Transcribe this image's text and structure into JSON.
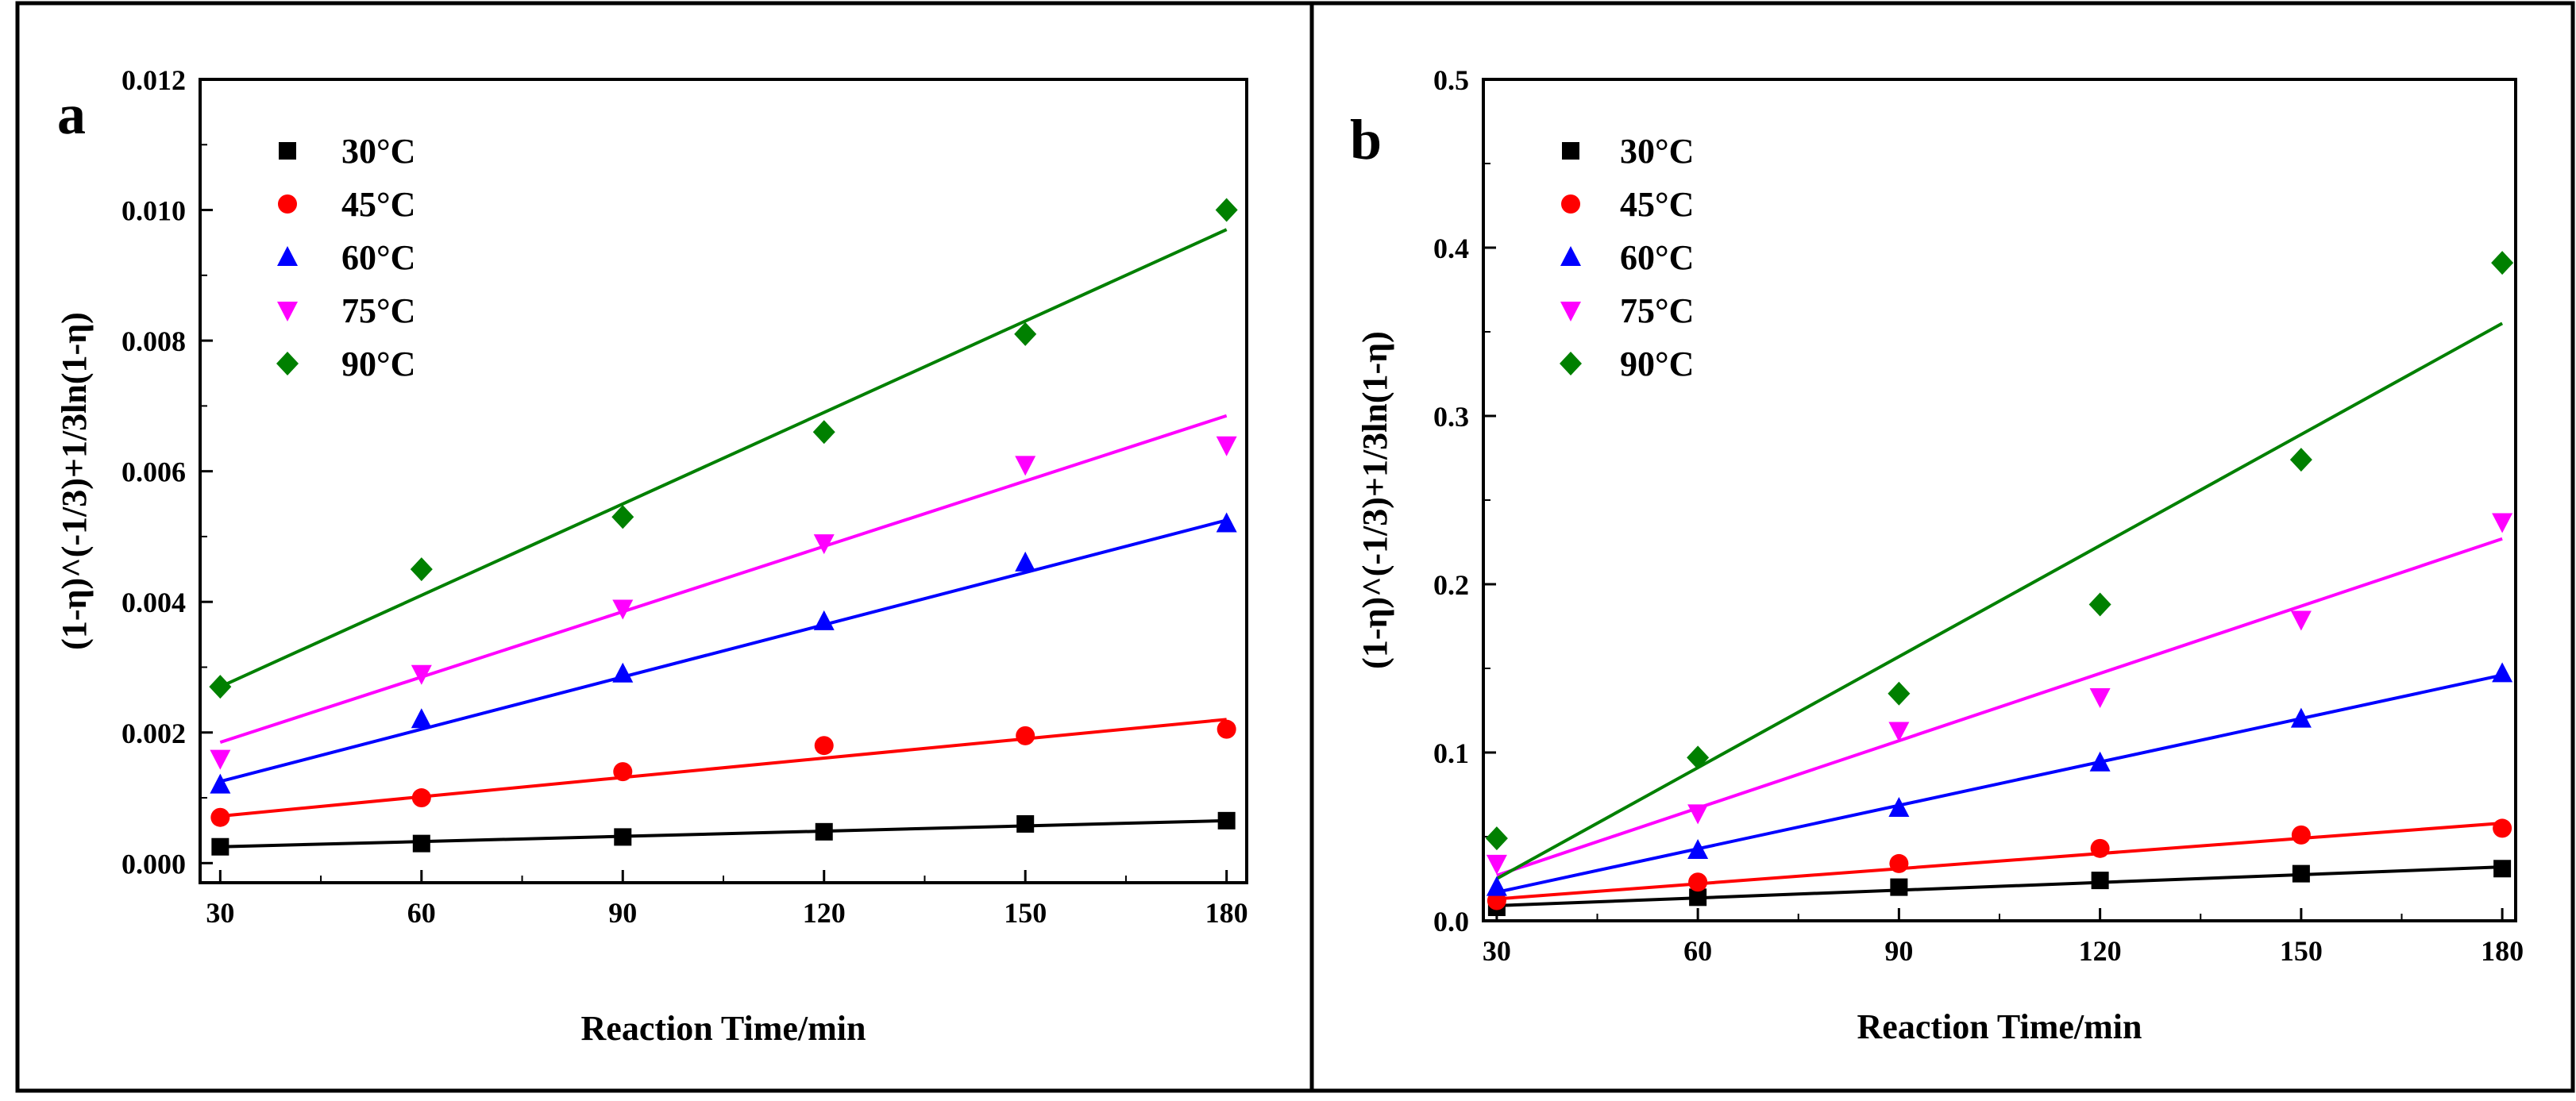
{
  "chart_data": [
    {
      "type": "scatter",
      "panel_label": "a",
      "xlabel": "Reaction Time/min",
      "ylabel": "(1-η)^(-1/3)+1/3ln(1-η)",
      "xlim": [
        27,
        183
      ],
      "ylim": [
        -0.0003,
        0.012
      ],
      "x_ticks": [
        30,
        60,
        90,
        120,
        150,
        180
      ],
      "y_ticks": [
        0.0,
        0.002,
        0.004,
        0.006,
        0.008,
        0.01,
        0.012
      ],
      "y_tick_labels": [
        "0.000",
        "0.002",
        "0.004",
        "0.006",
        "0.008",
        "0.010",
        "0.012"
      ],
      "x": [
        30,
        60,
        90,
        120,
        150,
        180
      ],
      "legend_position": "top-left",
      "fit_lines": true,
      "series": [
        {
          "name": "30°C",
          "marker": "square",
          "color": "#000000",
          "values": [
            0.00025,
            0.0003,
            0.0004,
            0.00048,
            0.0006,
            0.00065
          ],
          "fit": [
            0.00025,
            0.00065
          ]
        },
        {
          "name": "45°C",
          "marker": "circle",
          "color": "#ff0000",
          "values": [
            0.0007,
            0.001,
            0.0014,
            0.0018,
            0.00195,
            0.00205
          ],
          "fit": [
            0.00072,
            0.0022
          ]
        },
        {
          "name": "60°C",
          "marker": "triangle-up",
          "color": "#0000ff",
          "values": [
            0.0012,
            0.0022,
            0.0029,
            0.0037,
            0.0046,
            0.0052
          ],
          "fit": [
            0.00125,
            0.00525
          ]
        },
        {
          "name": "75°C",
          "marker": "triangle-down",
          "color": "#ff00ff",
          "values": [
            0.0016,
            0.0029,
            0.0039,
            0.0049,
            0.0061,
            0.0064
          ],
          "fit": [
            0.00185,
            0.00685
          ]
        },
        {
          "name": "90°C",
          "marker": "diamond",
          "color": "#008000",
          "values": [
            0.0027,
            0.0045,
            0.0053,
            0.0066,
            0.0081,
            0.01
          ],
          "fit": [
            0.0027,
            0.0097
          ]
        }
      ]
    },
    {
      "type": "scatter",
      "panel_label": "b",
      "xlabel": "Reaction Time/min",
      "ylabel": "(1-η)^(-1/3)+1/3ln(1-η)",
      "xlim": [
        28,
        182
      ],
      "ylim": [
        0,
        0.5
      ],
      "x_ticks": [
        30,
        60,
        90,
        120,
        150,
        180
      ],
      "y_ticks": [
        0.0,
        0.1,
        0.2,
        0.3,
        0.4,
        0.5
      ],
      "y_tick_labels": [
        "0.0",
        "0.1",
        "0.2",
        "0.3",
        "0.4",
        "0.5"
      ],
      "x": [
        30,
        60,
        90,
        120,
        150,
        180
      ],
      "legend_position": "top-left",
      "fit_lines": true,
      "series": [
        {
          "name": "30°C",
          "marker": "square",
          "color": "#000000",
          "values": [
            0.008,
            0.014,
            0.02,
            0.024,
            0.028,
            0.031
          ],
          "fit": [
            0.009,
            0.032
          ]
        },
        {
          "name": "45°C",
          "marker": "circle",
          "color": "#ff0000",
          "values": [
            0.012,
            0.023,
            0.034,
            0.043,
            0.051,
            0.055
          ],
          "fit": [
            0.013,
            0.058
          ]
        },
        {
          "name": "60°C",
          "marker": "triangle-up",
          "color": "#0000ff",
          "values": [
            0.02,
            0.042,
            0.067,
            0.094,
            0.12,
            0.147
          ],
          "fit": [
            0.017,
            0.146
          ]
        },
        {
          "name": "75°C",
          "marker": "triangle-down",
          "color": "#ff00ff",
          "values": [
            0.034,
            0.064,
            0.113,
            0.133,
            0.179,
            0.237
          ],
          "fit": [
            0.027,
            0.227
          ]
        },
        {
          "name": "90°C",
          "marker": "diamond",
          "color": "#008000",
          "values": [
            0.049,
            0.097,
            0.135,
            0.188,
            0.274,
            0.391
          ],
          "fit": [
            0.025,
            0.355
          ]
        }
      ]
    }
  ]
}
